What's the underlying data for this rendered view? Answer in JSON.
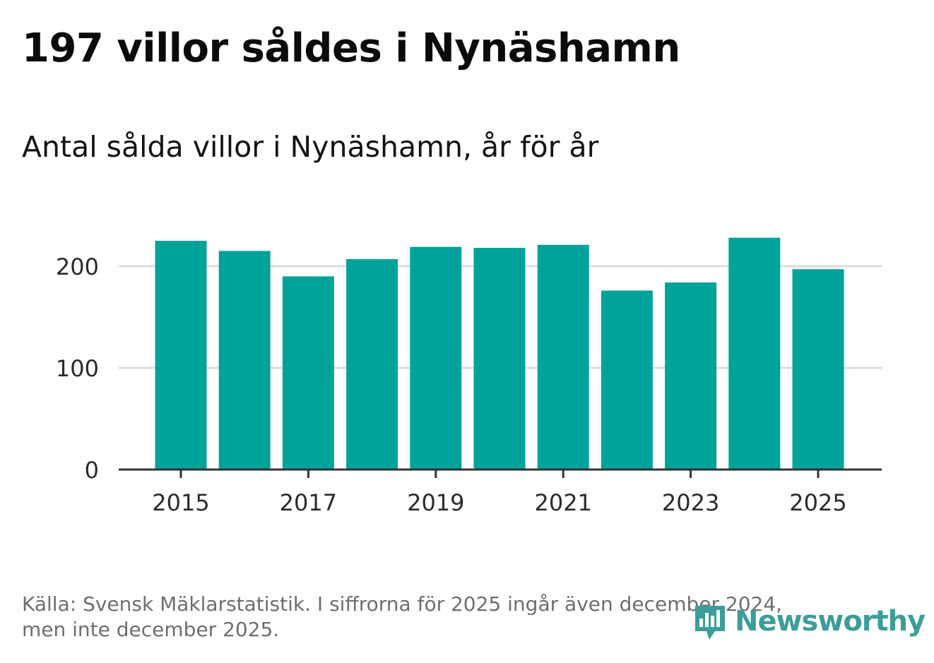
{
  "title": "197 villor såldes i Nynäshamn",
  "subtitle": "Antal sålda villor i Nynäshamn, år för år",
  "footer": {
    "line1": "Källa: Svensk Mäklarstatistik. I siffrorna för 2025 ingår även december 2024,",
    "line2": "men inte december 2025."
  },
  "logo": {
    "text": "Newsworthy",
    "icon": "bar-chart-pin-icon"
  },
  "colors": {
    "bar": "#00a39a",
    "grid": "#dddddd",
    "axis": "#333333",
    "logo": "#3c9e98"
  },
  "chart_data": {
    "type": "bar",
    "title": "197 villor såldes i Nynäshamn",
    "subtitle": "Antal sålda villor i Nynäshamn, år för år",
    "xlabel": "",
    "ylabel": "",
    "categories": [
      "2015",
      "2016",
      "2017",
      "2018",
      "2019",
      "2020",
      "2021",
      "2022",
      "2023",
      "2024",
      "2025"
    ],
    "values": [
      225,
      215,
      190,
      207,
      219,
      218,
      221,
      176,
      184,
      228,
      197
    ],
    "x_tick_labels": [
      "2015",
      "2017",
      "2019",
      "2021",
      "2023",
      "2025"
    ],
    "y_ticks": [
      0,
      100,
      200
    ],
    "y_tick_labels": [
      "0",
      "100",
      "200"
    ],
    "ylim": [
      0,
      240
    ],
    "grid": true
  }
}
